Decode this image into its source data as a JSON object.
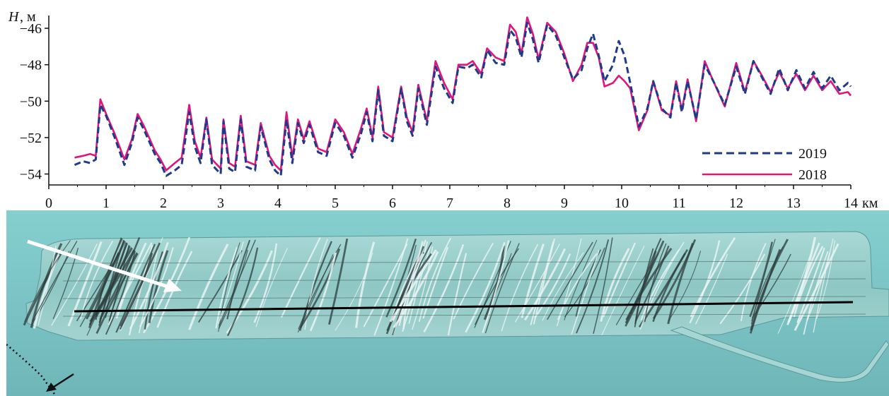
{
  "chart_data": {
    "type": "line",
    "ylabel_symbol": "H",
    "ylabel_unit": ", м",
    "xunit": "км",
    "xlim": [
      0,
      14
    ],
    "ylim": [
      -54.6,
      -45.3
    ],
    "xticks": [
      0,
      1,
      2,
      3,
      4,
      5,
      6,
      7,
      8,
      9,
      10,
      11,
      12,
      13,
      14
    ],
    "xtick_labels": [
      "0",
      "1",
      "2",
      "3",
      "4",
      "5",
      "6",
      "7",
      "8",
      "9",
      "10",
      "11",
      "12",
      "13",
      "14"
    ],
    "yticks": [
      -46,
      -48,
      -50,
      -52,
      -54
    ],
    "ytick_labels": [
      "−46",
      "−48",
      "−50",
      "−52",
      "−54"
    ],
    "legend_position": "bottom-right",
    "series": [
      {
        "name": "2019",
        "color": "#1f3a8a",
        "dash": "dashed",
        "points": [
          [
            0.45,
            -53.5
          ],
          [
            0.6,
            -53.3
          ],
          [
            0.72,
            -53.4
          ],
          [
            0.82,
            -53.2
          ],
          [
            0.9,
            -50.2
          ],
          [
            1.0,
            -50.8
          ],
          [
            1.15,
            -52.0
          ],
          [
            1.32,
            -53.5
          ],
          [
            1.45,
            -52.3
          ],
          [
            1.55,
            -50.9
          ],
          [
            1.65,
            -51.5
          ],
          [
            1.75,
            -52.2
          ],
          [
            1.85,
            -52.9
          ],
          [
            1.95,
            -53.4
          ],
          [
            2.05,
            -54.1
          ],
          [
            2.2,
            -53.8
          ],
          [
            2.32,
            -53.5
          ],
          [
            2.45,
            -50.6
          ],
          [
            2.55,
            -52.5
          ],
          [
            2.65,
            -53.4
          ],
          [
            2.75,
            -51.0
          ],
          [
            2.85,
            -53.5
          ],
          [
            3.0,
            -54.0
          ],
          [
            3.05,
            -51.1
          ],
          [
            3.15,
            -53.7
          ],
          [
            3.25,
            -53.9
          ],
          [
            3.35,
            -51.0
          ],
          [
            3.45,
            -53.6
          ],
          [
            3.6,
            -53.8
          ],
          [
            3.7,
            -51.4
          ],
          [
            3.85,
            -53.2
          ],
          [
            3.95,
            -53.8
          ],
          [
            4.05,
            -54.1
          ],
          [
            4.15,
            -51.0
          ],
          [
            4.25,
            -53.4
          ],
          [
            4.35,
            -51.2
          ],
          [
            4.45,
            -52.3
          ],
          [
            4.55,
            -51.3
          ],
          [
            4.7,
            -52.8
          ],
          [
            4.85,
            -53.0
          ],
          [
            5.0,
            -51.2
          ],
          [
            5.15,
            -51.9
          ],
          [
            5.3,
            -53.1
          ],
          [
            5.45,
            -51.8
          ],
          [
            5.55,
            -50.6
          ],
          [
            5.65,
            -52.2
          ],
          [
            5.75,
            -49.4
          ],
          [
            5.85,
            -51.9
          ],
          [
            6.0,
            -52.2
          ],
          [
            6.15,
            -49.3
          ],
          [
            6.25,
            -51.1
          ],
          [
            6.35,
            -51.9
          ],
          [
            6.45,
            -49.3
          ],
          [
            6.6,
            -51.3
          ],
          [
            6.75,
            -48.1
          ],
          [
            6.9,
            -49.3
          ],
          [
            7.05,
            -50.1
          ],
          [
            7.15,
            -48.1
          ],
          [
            7.3,
            -48.2
          ],
          [
            7.4,
            -48.0
          ],
          [
            7.55,
            -48.7
          ],
          [
            7.65,
            -47.2
          ],
          [
            7.8,
            -47.9
          ],
          [
            7.95,
            -48.0
          ],
          [
            8.05,
            -46.1
          ],
          [
            8.15,
            -46.5
          ],
          [
            8.25,
            -47.6
          ],
          [
            8.35,
            -45.7
          ],
          [
            8.45,
            -46.6
          ],
          [
            8.55,
            -47.9
          ],
          [
            8.7,
            -45.8
          ],
          [
            8.85,
            -46.4
          ],
          [
            9.0,
            -47.6
          ],
          [
            9.15,
            -48.8
          ],
          [
            9.3,
            -48.3
          ],
          [
            9.4,
            -47.1
          ],
          [
            9.5,
            -46.3
          ],
          [
            9.6,
            -47.5
          ],
          [
            9.7,
            -48.9
          ],
          [
            9.85,
            -48.0
          ],
          [
            9.95,
            -46.7
          ],
          [
            10.05,
            -47.5
          ],
          [
            10.15,
            -49.0
          ],
          [
            10.3,
            -51.4
          ],
          [
            10.45,
            -50.4
          ],
          [
            10.55,
            -48.9
          ],
          [
            10.7,
            -50.4
          ],
          [
            10.85,
            -50.9
          ],
          [
            10.95,
            -49.0
          ],
          [
            11.05,
            -50.6
          ],
          [
            11.15,
            -48.9
          ],
          [
            11.3,
            -51.0
          ],
          [
            11.45,
            -48.0
          ],
          [
            11.6,
            -48.9
          ],
          [
            11.8,
            -50.2
          ],
          [
            12.0,
            -48.1
          ],
          [
            12.15,
            -49.6
          ],
          [
            12.3,
            -47.8
          ],
          [
            12.45,
            -48.7
          ],
          [
            12.6,
            -49.6
          ],
          [
            12.75,
            -48.2
          ],
          [
            12.9,
            -49.4
          ],
          [
            13.05,
            -48.3
          ],
          [
            13.2,
            -49.3
          ],
          [
            13.35,
            -48.4
          ],
          [
            13.5,
            -49.3
          ],
          [
            13.65,
            -48.6
          ],
          [
            13.8,
            -49.4
          ],
          [
            13.95,
            -49.0
          ],
          [
            14.0,
            -49.2
          ]
        ]
      },
      {
        "name": "2018",
        "color": "#e0177a",
        "dash": "solid",
        "points": [
          [
            0.45,
            -53.1
          ],
          [
            0.6,
            -53.0
          ],
          [
            0.72,
            -52.9
          ],
          [
            0.82,
            -53.0
          ],
          [
            0.9,
            -49.9
          ],
          [
            1.0,
            -50.7
          ],
          [
            1.15,
            -51.8
          ],
          [
            1.32,
            -53.2
          ],
          [
            1.45,
            -52.1
          ],
          [
            1.55,
            -50.7
          ],
          [
            1.65,
            -51.3
          ],
          [
            1.75,
            -52.0
          ],
          [
            1.85,
            -52.7
          ],
          [
            1.95,
            -53.2
          ],
          [
            2.05,
            -53.8
          ],
          [
            2.2,
            -53.4
          ],
          [
            2.32,
            -53.1
          ],
          [
            2.45,
            -50.2
          ],
          [
            2.55,
            -52.2
          ],
          [
            2.65,
            -53.1
          ],
          [
            2.75,
            -50.9
          ],
          [
            2.85,
            -53.2
          ],
          [
            3.0,
            -53.7
          ],
          [
            3.05,
            -51.0
          ],
          [
            3.15,
            -53.4
          ],
          [
            3.25,
            -53.6
          ],
          [
            3.35,
            -50.8
          ],
          [
            3.45,
            -53.3
          ],
          [
            3.6,
            -53.5
          ],
          [
            3.7,
            -51.2
          ],
          [
            3.85,
            -53.0
          ],
          [
            3.95,
            -53.5
          ],
          [
            4.05,
            -53.8
          ],
          [
            4.15,
            -50.6
          ],
          [
            4.25,
            -53.1
          ],
          [
            4.35,
            -51.0
          ],
          [
            4.45,
            -52.1
          ],
          [
            4.55,
            -51.1
          ],
          [
            4.7,
            -52.6
          ],
          [
            4.85,
            -52.8
          ],
          [
            5.0,
            -51.0
          ],
          [
            5.15,
            -51.7
          ],
          [
            5.3,
            -52.9
          ],
          [
            5.45,
            -51.5
          ],
          [
            5.55,
            -50.4
          ],
          [
            5.65,
            -52.0
          ],
          [
            5.75,
            -49.2
          ],
          [
            5.85,
            -51.7
          ],
          [
            6.0,
            -52.0
          ],
          [
            6.15,
            -49.2
          ],
          [
            6.25,
            -50.9
          ],
          [
            6.35,
            -51.7
          ],
          [
            6.45,
            -49.1
          ],
          [
            6.6,
            -51.1
          ],
          [
            6.75,
            -47.8
          ],
          [
            6.9,
            -49.0
          ],
          [
            7.05,
            -49.9
          ],
          [
            7.15,
            -48.0
          ],
          [
            7.3,
            -48.0
          ],
          [
            7.4,
            -47.8
          ],
          [
            7.55,
            -48.5
          ],
          [
            7.65,
            -47.1
          ],
          [
            7.8,
            -47.6
          ],
          [
            7.95,
            -47.8
          ],
          [
            8.05,
            -45.8
          ],
          [
            8.15,
            -46.2
          ],
          [
            8.25,
            -47.4
          ],
          [
            8.35,
            -45.4
          ],
          [
            8.45,
            -46.3
          ],
          [
            8.55,
            -47.7
          ],
          [
            8.7,
            -45.7
          ],
          [
            8.85,
            -46.2
          ],
          [
            9.0,
            -47.4
          ],
          [
            9.15,
            -48.9
          ],
          [
            9.3,
            -48.0
          ],
          [
            9.4,
            -46.8
          ],
          [
            9.5,
            -46.8
          ],
          [
            9.6,
            -47.6
          ],
          [
            9.7,
            -49.2
          ],
          [
            9.85,
            -49.0
          ],
          [
            9.95,
            -48.6
          ],
          [
            10.05,
            -48.9
          ],
          [
            10.15,
            -49.3
          ],
          [
            10.3,
            -51.6
          ],
          [
            10.45,
            -50.5
          ],
          [
            10.55,
            -48.9
          ],
          [
            10.7,
            -50.5
          ],
          [
            10.85,
            -50.8
          ],
          [
            10.95,
            -48.9
          ],
          [
            11.05,
            -50.5
          ],
          [
            11.15,
            -48.8
          ],
          [
            11.3,
            -51.1
          ],
          [
            11.45,
            -47.8
          ],
          [
            11.6,
            -48.9
          ],
          [
            11.8,
            -50.3
          ],
          [
            12.0,
            -47.9
          ],
          [
            12.15,
            -49.5
          ],
          [
            12.3,
            -47.8
          ],
          [
            12.45,
            -48.6
          ],
          [
            12.6,
            -49.5
          ],
          [
            12.75,
            -48.4
          ],
          [
            12.9,
            -49.3
          ],
          [
            13.05,
            -48.5
          ],
          [
            13.2,
            -49.4
          ],
          [
            13.35,
            -48.6
          ],
          [
            13.5,
            -49.4
          ],
          [
            13.65,
            -48.9
          ],
          [
            13.8,
            -49.6
          ],
          [
            13.95,
            -49.5
          ],
          [
            14.0,
            -49.7
          ]
        ]
      }
    ]
  },
  "relief_image": {
    "background": "#7cc6c8",
    "description_icon": "seabed-relief-map",
    "arrow_color": "#ffffff",
    "profile_line_color": "#000000"
  }
}
